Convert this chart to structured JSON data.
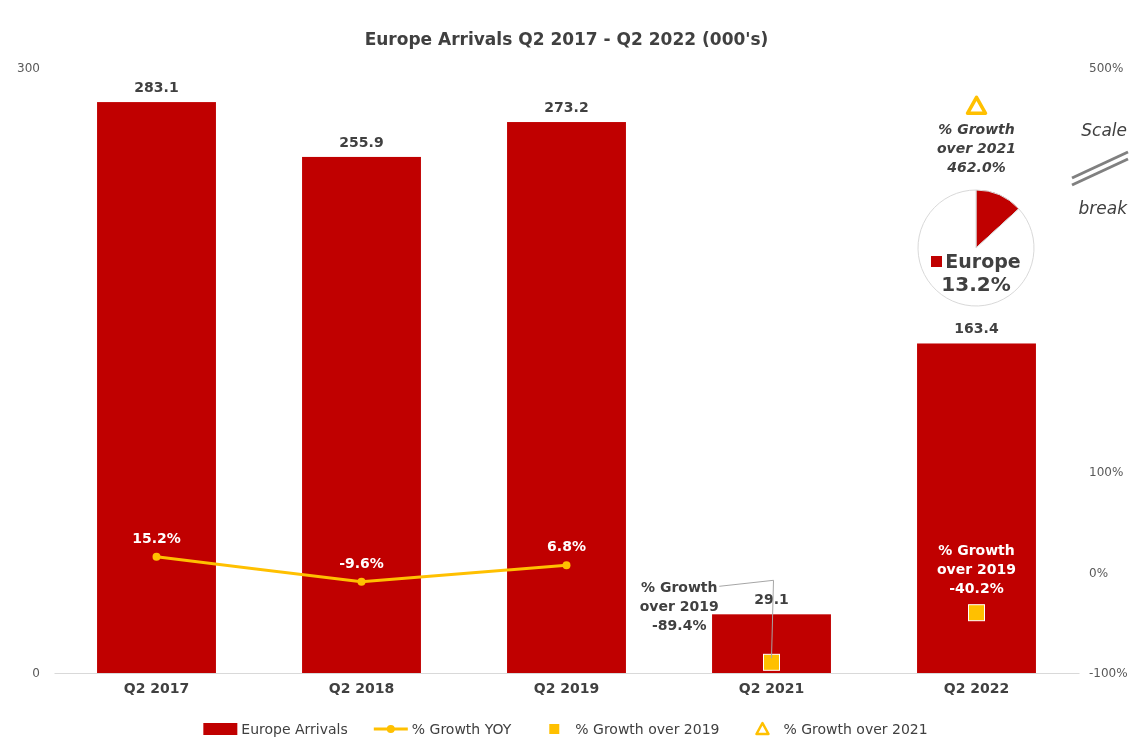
{
  "chart_data": [
    {
      "type": "bar",
      "title": "Europe Arrivals Q2 2017 - Q2 2022 (000's)",
      "categories": [
        "Q2 2017",
        "Q2 2018",
        "Q2 2019",
        "Q2 2021",
        "Q2 2022"
      ],
      "ylim": [
        0,
        300
      ],
      "yticks": [
        0,
        300
      ],
      "y2lim": [
        -100,
        500
      ],
      "y2ticks": [
        {
          "value": -100,
          "label": "-100%"
        },
        {
          "value": 0,
          "label": "0%"
        },
        {
          "value": 100,
          "label": "100%"
        },
        {
          "value": 500,
          "label": "500%"
        }
      ],
      "grid": false,
      "legend": "bottom",
      "annotations": [
        "Scale break"
      ],
      "series": [
        {
          "name": "Europe Arrivals",
          "type": "bar",
          "color": "#c00000",
          "values": [
            283.1,
            255.9,
            273.2,
            29.1,
            163.4
          ],
          "value_labels": [
            "283.1",
            "255.9",
            "273.2",
            "29.1",
            "163.4"
          ]
        },
        {
          "name": "% Growth YOY",
          "type": "line",
          "axis": "y2",
          "marker": "circle",
          "line_style": "solid",
          "color": "#ffc000",
          "values": [
            15.2,
            -9.6,
            6.8,
            null,
            null
          ],
          "value_labels": [
            "15.2%",
            "-9.6%",
            "6.8%",
            null,
            null
          ]
        },
        {
          "name": "% Growth over 2019",
          "type": "scatter",
          "axis": "y2",
          "marker": "square",
          "color": "#ffc000",
          "values": [
            null,
            null,
            null,
            -89.4,
            -40.2
          ],
          "value_labels": [
            null,
            null,
            null,
            "% Growth\nover 2019\n-89.4%",
            "% Growth\nover 2019\n-40.2%"
          ]
        },
        {
          "name": "% Growth over 2021",
          "type": "scatter",
          "axis": "y2",
          "marker": "triangle",
          "color": "#ffc000",
          "values": [
            null,
            null,
            null,
            null,
            462.0
          ],
          "value_labels": [
            null,
            null,
            null,
            null,
            "% Growth\nover 2021\n462.0%"
          ]
        }
      ]
    },
    {
      "type": "pie",
      "categories": [
        "Europe",
        null
      ],
      "values": [
        13.2,
        86.8
      ],
      "colors": [
        "#c00000",
        "#ffffff"
      ],
      "value_labels": [
        "13.2%",
        null
      ]
    }
  ]
}
